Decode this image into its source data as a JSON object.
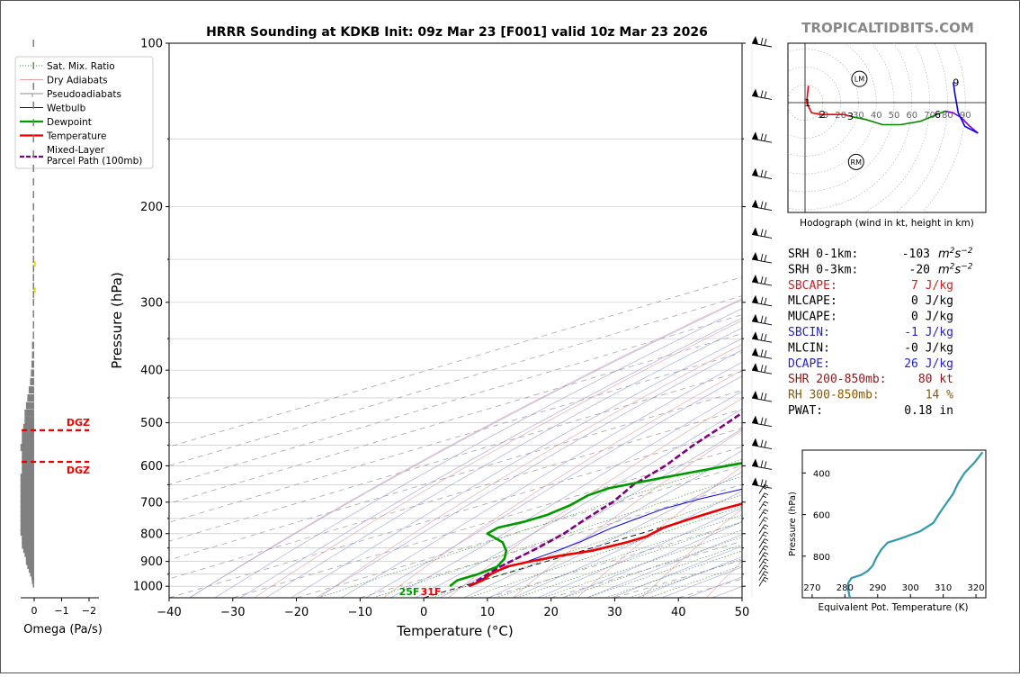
{
  "title": "HRRR Sounding at KDKB Init: 09z Mar 23 [F001] valid 10z Mar 23 2026",
  "brand": "TROPICALTIDBITS.COM",
  "chart_data": [
    {
      "type": "line",
      "id": "skewt",
      "xlabel": "Temperature (°C)",
      "ylabel": "Pressure (hPa)",
      "x_ticks": [
        "−40",
        "−30",
        "−20",
        "−10",
        "0",
        "10",
        "20",
        "30",
        "40",
        "50"
      ],
      "x_tick_values": [
        -40,
        -30,
        -20,
        -10,
        0,
        10,
        20,
        30,
        40,
        50
      ],
      "y_ticks": [
        "100",
        "200",
        "300",
        "400",
        "500",
        "600",
        "700",
        "800",
        "900",
        "1000"
      ],
      "y_tick_values": [
        100,
        200,
        300,
        400,
        500,
        600,
        700,
        800,
        900,
        1000
      ],
      "ylim": [
        100,
        1050
      ],
      "xlim_at_bottom": [
        -40,
        50
      ],
      "y_scale": "log",
      "legend_position": "upper-left",
      "legend": [
        {
          "label": "Sat. Mix. Ratio",
          "color": "#2a8a2a",
          "style": "dotted"
        },
        {
          "label": "Dry Adiabats",
          "color": "#e6a0a0",
          "style": "solid"
        },
        {
          "label": "Pseudoadiabats",
          "color": "#888888",
          "style": "dash-tick"
        },
        {
          "label": "Wetbulb",
          "color": "#0000ee",
          "style": "solid"
        },
        {
          "label": "Dewpoint",
          "color": "#009900",
          "style": "solid-thick"
        },
        {
          "label": "Temperature",
          "color": "#ee0000",
          "style": "solid-thick"
        },
        {
          "label": "Mixed-Layer\nParcel Path (100mb)",
          "color": "#800080",
          "style": "dashed-thick"
        }
      ],
      "series": [
        {
          "name": "Temperature",
          "color": "#ee0000",
          "points": [
            [
              1.0,
              1000
            ],
            [
              0.0,
              975
            ],
            [
              -2.0,
              950
            ],
            [
              -3.5,
              920
            ],
            [
              -2.5,
              900
            ],
            [
              -1.0,
              880
            ],
            [
              1.5,
              860
            ],
            [
              2.5,
              830
            ],
            [
              2.5,
              810
            ],
            [
              0.5,
              780
            ],
            [
              0.0,
              750
            ],
            [
              -0.2,
              720
            ],
            [
              0.5,
              690
            ],
            [
              2.0,
              660
            ],
            [
              3.5,
              630
            ],
            [
              3.0,
              590
            ],
            [
              1.5,
              550
            ],
            [
              -0.5,
              510
            ],
            [
              -3.0,
              475
            ],
            [
              -7.0,
              430
            ],
            [
              -9.5,
              400
            ],
            [
              -12.5,
              360
            ],
            [
              -16.0,
              320
            ],
            [
              -18.5,
              285
            ],
            [
              -19.0,
              265
            ],
            [
              -17.5,
              245
            ],
            [
              -14.0,
              225
            ],
            [
              -10.0,
              200
            ],
            [
              -7.0,
              180
            ],
            [
              -5.0,
              160
            ],
            [
              -4.0,
              145
            ],
            [
              -3.0,
              128
            ],
            [
              -3.0,
              112
            ],
            [
              -3.5,
              100
            ]
          ]
        },
        {
          "name": "Dewpoint",
          "color": "#009900",
          "points": [
            [
              -2.0,
              1000
            ],
            [
              -4.0,
              975
            ],
            [
              -4.0,
              950
            ],
            [
              -5.0,
              920
            ],
            [
              -8.0,
              890
            ],
            [
              -12.0,
              860
            ],
            [
              -17.0,
              830
            ],
            [
              -24.0,
              800
            ],
            [
              -25.5,
              780
            ],
            [
              -24.5,
              760
            ],
            [
              -24.5,
              740
            ],
            [
              -26.0,
              710
            ],
            [
              -28.5,
              680
            ],
            [
              -29.0,
              660
            ],
            [
              -26.0,
              630
            ],
            [
              -21.0,
              590
            ],
            [
              -20.0,
              555
            ],
            [
              -21.5,
              515
            ],
            [
              -22.5,
              490
            ],
            [
              -23.5,
              460
            ],
            [
              -23.0,
              420
            ],
            [
              -23.0,
              390
            ],
            [
              -24.0,
              360
            ],
            [
              -26.0,
              325
            ],
            [
              -26.5,
              290
            ],
            [
              -27.0,
              265
            ],
            [
              -27.5,
              240
            ],
            [
              -29.0,
              220
            ],
            [
              -30.0,
              200
            ],
            [
              -29.5,
              180
            ],
            [
              -29.0,
              165
            ],
            [
              -28.0,
              145
            ],
            [
              -26.5,
              128
            ],
            [
              -24.5,
              112
            ],
            [
              -20.0,
              100
            ]
          ]
        },
        {
          "name": "Wetbulb",
          "color": "#0000ee",
          "points": [
            [
              1.0,
              1000
            ],
            [
              -0.5,
              975
            ],
            [
              -2.0,
              950
            ],
            [
              -3.0,
              920
            ],
            [
              -3.0,
              900
            ],
            [
              -3.5,
              880
            ],
            [
              -4.0,
              860
            ],
            [
              -5.0,
              830
            ],
            [
              -6.0,
              810
            ],
            [
              -7.5,
              780
            ],
            [
              -8.5,
              750
            ],
            [
              -9.5,
              720
            ],
            [
              -9.0,
              690
            ],
            [
              -7.5,
              660
            ],
            [
              -6.0,
              630
            ],
            [
              -5.5,
              590
            ],
            [
              -6.0,
              550
            ],
            [
              -7.0,
              510
            ],
            [
              -8.5,
              480
            ],
            [
              -11.0,
              440
            ],
            [
              -12.5,
              410
            ],
            [
              -15.0,
              370
            ],
            [
              -17.5,
              330
            ],
            [
              -19.5,
              295
            ],
            [
              -20.0,
              270
            ],
            [
              -18.0,
              245
            ],
            [
              -14.5,
              225
            ],
            [
              -10.0,
              200
            ],
            [
              -7.0,
              180
            ],
            [
              -5.0,
              160
            ],
            [
              -4.0,
              145
            ],
            [
              -3.0,
              128
            ],
            [
              -3.0,
              112
            ],
            [
              -3.5,
              100
            ]
          ]
        },
        {
          "name": "Mixed-Layer Parcel Path (100mb)",
          "color": "#800080",
          "points": [
            [
              1.0,
              1000
            ],
            [
              -2.5,
              950
            ],
            [
              -4.5,
              920
            ],
            [
              -8.5,
              850
            ],
            [
              -12.0,
              800
            ],
            [
              -16.5,
              750
            ],
            [
              -21.0,
              700
            ],
            [
              -27.0,
              650
            ],
            [
              -32.0,
              600
            ],
            [
              -38.5,
              550
            ],
            [
              -45.0,
              500
            ],
            [
              -52.5,
              450
            ],
            [
              -60.0,
              400
            ],
            [
              -69.0,
              350
            ],
            [
              -79.0,
              300
            ]
          ]
        }
      ],
      "sat_mix_ratio_labels": [
        "1",
        "2",
        "4",
        "6",
        "8",
        "10",
        "13",
        "16",
        "20",
        "24",
        "30",
        "36"
      ],
      "sat_mix_ratio_values": [
        1,
        2,
        4,
        6,
        8,
        10,
        13,
        16,
        20,
        24,
        30,
        36
      ],
      "surface_labels": {
        "dewpoint": "25F",
        "temperature": "31F"
      },
      "wind_barb_levels": [
        100,
        125,
        150,
        175,
        200,
        225,
        250,
        275,
        300,
        325,
        350,
        375,
        400,
        450,
        500,
        550,
        600,
        650,
        675,
        700,
        725,
        750,
        775,
        800,
        825,
        850,
        875,
        900,
        925,
        950,
        975,
        1000
      ]
    },
    {
      "type": "bar",
      "id": "omega",
      "xlabel": "Omega (Pa/s)",
      "x_ticks": [
        "0",
        "−1",
        "−2"
      ],
      "x_tick_values": [
        0,
        -1,
        -2
      ],
      "xlim": [
        0.1,
        -2.5
      ],
      "annotations": [
        "DGZ",
        "DGZ"
      ],
      "dgz_bounds_hPa": [
        516,
        590
      ],
      "levels_hPa": [
        100,
        110,
        120,
        130,
        140,
        150,
        160,
        170,
        180,
        190,
        200,
        210,
        220,
        230,
        240,
        250,
        260,
        270,
        280,
        290,
        300,
        315,
        330,
        345,
        360,
        375,
        390,
        405,
        420,
        435,
        450,
        465,
        480,
        495,
        510,
        525,
        540,
        555,
        570,
        585,
        600,
        615,
        630,
        645,
        660,
        675,
        690,
        705,
        720,
        735,
        750,
        765,
        780,
        795,
        810,
        825,
        840,
        855,
        870,
        885,
        900,
        915,
        930,
        945,
        960,
        975,
        990
      ],
      "omega": [
        -0.05,
        -0.05,
        -0.05,
        -0.05,
        -0.05,
        -0.05,
        -0.05,
        -0.05,
        -0.05,
        -0.05,
        -0.05,
        -0.05,
        -0.05,
        -0.05,
        -0.05,
        -0.05,
        -0.05,
        -0.05,
        -0.05,
        -0.05,
        -0.05,
        -0.05,
        -0.05,
        -0.05,
        -0.08,
        -0.08,
        -0.1,
        -0.12,
        -0.15,
        -0.2,
        -0.25,
        -0.3,
        -0.35,
        -0.35,
        -0.4,
        -0.45,
        -0.45,
        -0.5,
        -0.45,
        -0.45,
        -0.45,
        -0.45,
        -0.5,
        -0.5,
        -0.5,
        -0.5,
        -0.5,
        -0.5,
        -0.5,
        -0.5,
        -0.5,
        -0.5,
        -0.5,
        -0.5,
        -0.45,
        -0.45,
        -0.45,
        -0.4,
        -0.35,
        -0.3,
        -0.3,
        -0.25,
        -0.2,
        -0.15,
        -0.1,
        -0.08,
        -0.05
      ],
      "yellow_levels_hPa": [
        255,
        285
      ]
    },
    {
      "type": "line",
      "id": "hodograph",
      "xlabel": "Hodograph (wind in kt, height in km)",
      "ring_labels": [
        "10",
        "20",
        "30",
        "40",
        "50",
        "60",
        "70",
        "80",
        "90"
      ],
      "ring_values": [
        10,
        20,
        30,
        40,
        50,
        60,
        70,
        80,
        90
      ],
      "height_labels": [
        "1",
        "2",
        "3",
        "6",
        "9"
      ],
      "markers": [
        "LM",
        "RM"
      ],
      "segments": [
        {
          "color": "#ee0000",
          "uv": [
            [
              2,
              10
            ],
            [
              1,
              0
            ],
            [
              4,
              -6
            ],
            [
              10,
              -7
            ],
            [
              18,
              -7
            ],
            [
              24,
              -7
            ],
            [
              27,
              -8
            ]
          ]
        },
        {
          "color": "#008800",
          "uv": [
            [
              27,
              -8
            ],
            [
              37,
              -10
            ],
            [
              47,
              -13
            ],
            [
              58,
              -13
            ],
            [
              70,
              -11
            ],
            [
              80,
              -7
            ],
            [
              85,
              -5
            ]
          ]
        },
        {
          "color": "#8800cc",
          "uv": [
            [
              85,
              -5
            ],
            [
              90,
              -6
            ],
            [
              95,
              -9
            ],
            [
              100,
              -14
            ],
            [
              105,
              -18
            ]
          ]
        },
        {
          "color": "#0000ee",
          "uv": [
            [
              105,
              -18
            ],
            [
              97,
              -14
            ],
            [
              93,
              -6
            ],
            [
              91,
              5
            ],
            [
              90,
              12
            ]
          ]
        }
      ],
      "height_points": [
        [
          1,
          1
        ],
        [
          2,
          13
        ],
        [
          3,
          27
        ],
        [
          6,
          85
        ],
        [
          9,
          106
        ]
      ],
      "storm_motion": {
        "LM": [
          33,
          14
        ],
        "RM": [
          31,
          -35
        ]
      }
    },
    {
      "type": "line",
      "id": "theta_e",
      "xlabel": "Equivalent Pot. Temperature (K)",
      "ylabel": "Pressure (hPa)",
      "x_ticks": [
        "270",
        "280",
        "290",
        "300",
        "310",
        "320"
      ],
      "x_tick_values": [
        270,
        280,
        290,
        300,
        310,
        320
      ],
      "y_ticks": [
        "400",
        "600",
        "800"
      ],
      "y_tick_values": [
        400,
        600,
        800
      ],
      "xlim": [
        267,
        323
      ],
      "ylim": [
        1000,
        290
      ],
      "series": [
        {
          "name": "Theta-E",
          "color": "#3399aa",
          "points": [
            [
              281.5,
              1000
            ],
            [
              281,
              960
            ],
            [
              281,
              930
            ],
            [
              282,
              905
            ],
            [
              285,
              890
            ],
            [
              287,
              870
            ],
            [
              288.5,
              845
            ],
            [
              289.5,
              810
            ],
            [
              291,
              770
            ],
            [
              293,
              735
            ],
            [
              297,
              715
            ],
            [
              303,
              680
            ],
            [
              307,
              640
            ],
            [
              309,
              590
            ],
            [
              311,
              545
            ],
            [
              313,
              500
            ],
            [
              314.5,
              450
            ],
            [
              316.5,
              400
            ],
            [
              319.5,
              350
            ],
            [
              322,
              300
            ]
          ]
        }
      ]
    }
  ],
  "indices": [
    {
      "label": "SRH 0-1km:",
      "value": "-103",
      "unit_base": "m",
      "unit_sup1": "2",
      "unit_mid": "s",
      "unit_sup2": "−2",
      "color": "#000000"
    },
    {
      "label": "SRH 0-3km:",
      "value": "-20",
      "unit_base": "m",
      "unit_sup1": "2",
      "unit_mid": "s",
      "unit_sup2": "−2",
      "color": "#000000"
    },
    {
      "label": "SBCAPE:",
      "value": "7 J/kg",
      "color": "#cc2222"
    },
    {
      "label": "MLCAPE:",
      "value": "0 J/kg",
      "color": "#000000"
    },
    {
      "label": "MUCAPE:",
      "value": "0 J/kg",
      "color": "#000000"
    },
    {
      "label": "SBCIN:",
      "value": "-1 J/kg",
      "color": "#2222cc"
    },
    {
      "label": "MLCIN:",
      "value": "-0 J/kg",
      "color": "#000000"
    },
    {
      "label": "DCAPE:",
      "value": "26 J/kg",
      "color": "#2222cc"
    },
    {
      "label": "SHR 200-850mb:",
      "value": "80 kt",
      "color": "#8b1a1a"
    },
    {
      "label": "RH 300-850mb:",
      "value": "14 %",
      "color": "#8b5a00"
    },
    {
      "label": "PWAT:",
      "value": "0.18 in",
      "color": "#000000"
    }
  ]
}
